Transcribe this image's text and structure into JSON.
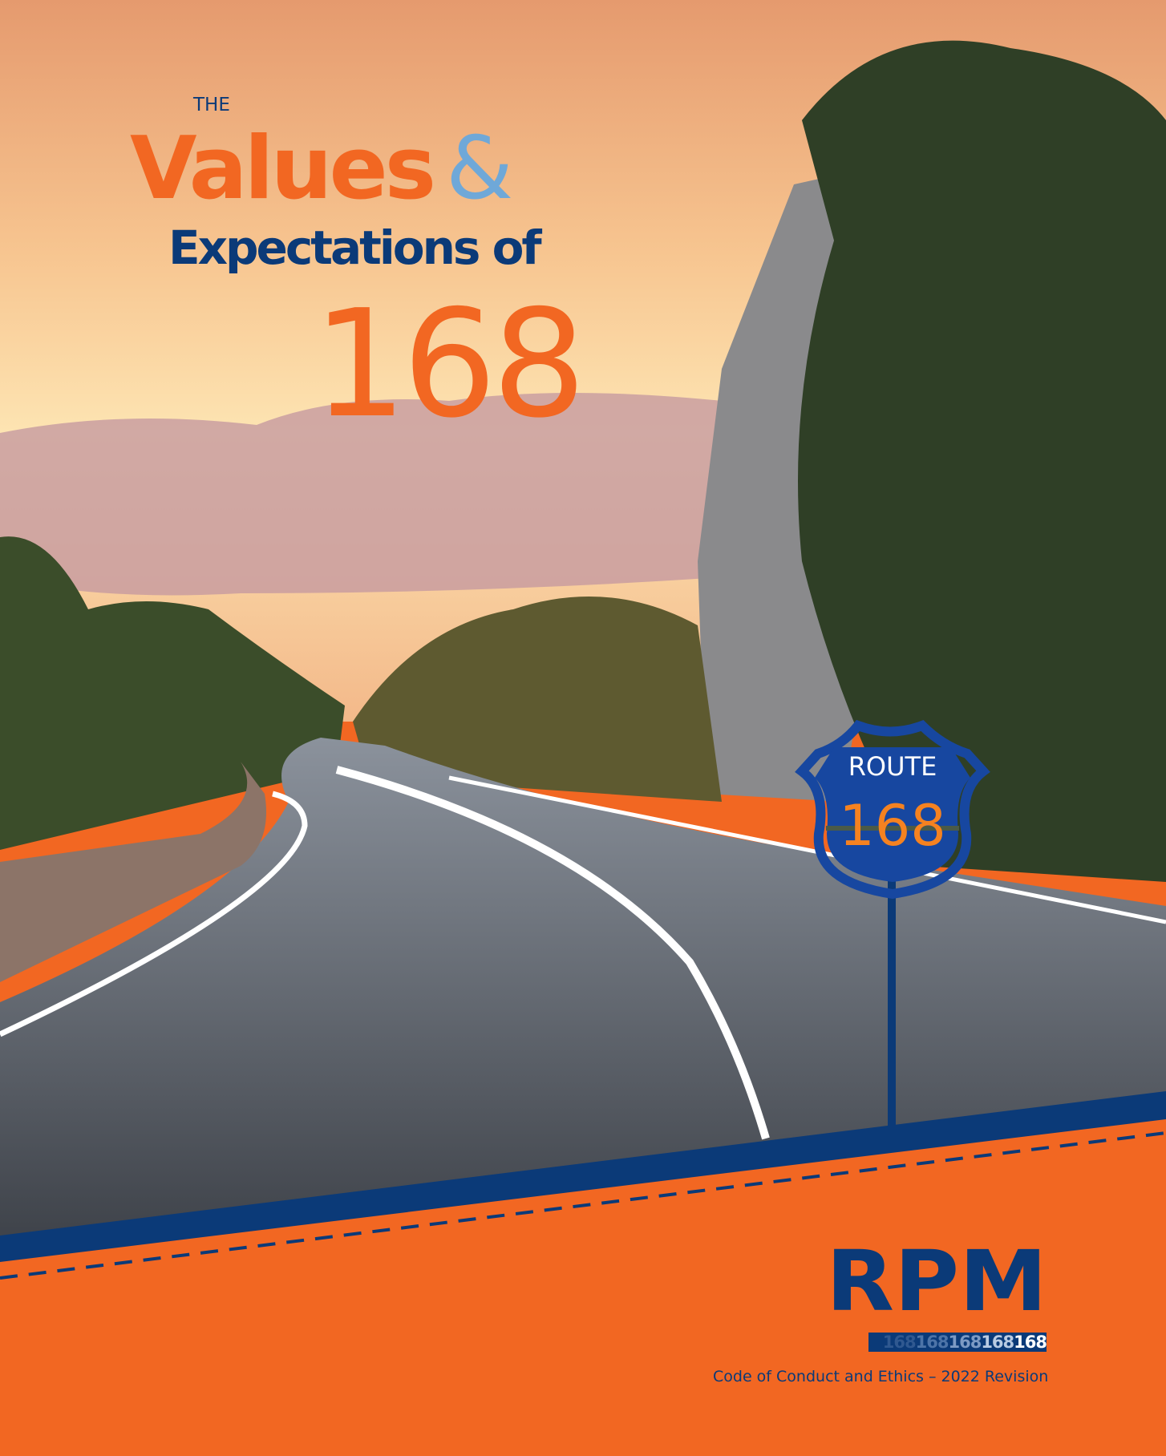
{
  "cover": {
    "title_prefix": "THE",
    "title_word1": "Values",
    "title_amp": "&",
    "title_line2": "Expectations of",
    "title_number": "168"
  },
  "route_sign": {
    "label": "ROUTE",
    "number": "168"
  },
  "logo": {
    "text": "RPM",
    "number_strip": [
      "168",
      "168",
      "168",
      "168",
      "168"
    ]
  },
  "footer": {
    "subtitle": "Code of Conduct and Ethics – 2022 Revision"
  },
  "colors": {
    "orange": "#f26722",
    "navy": "#0b3a78",
    "light_blue": "#6fa8d8"
  }
}
